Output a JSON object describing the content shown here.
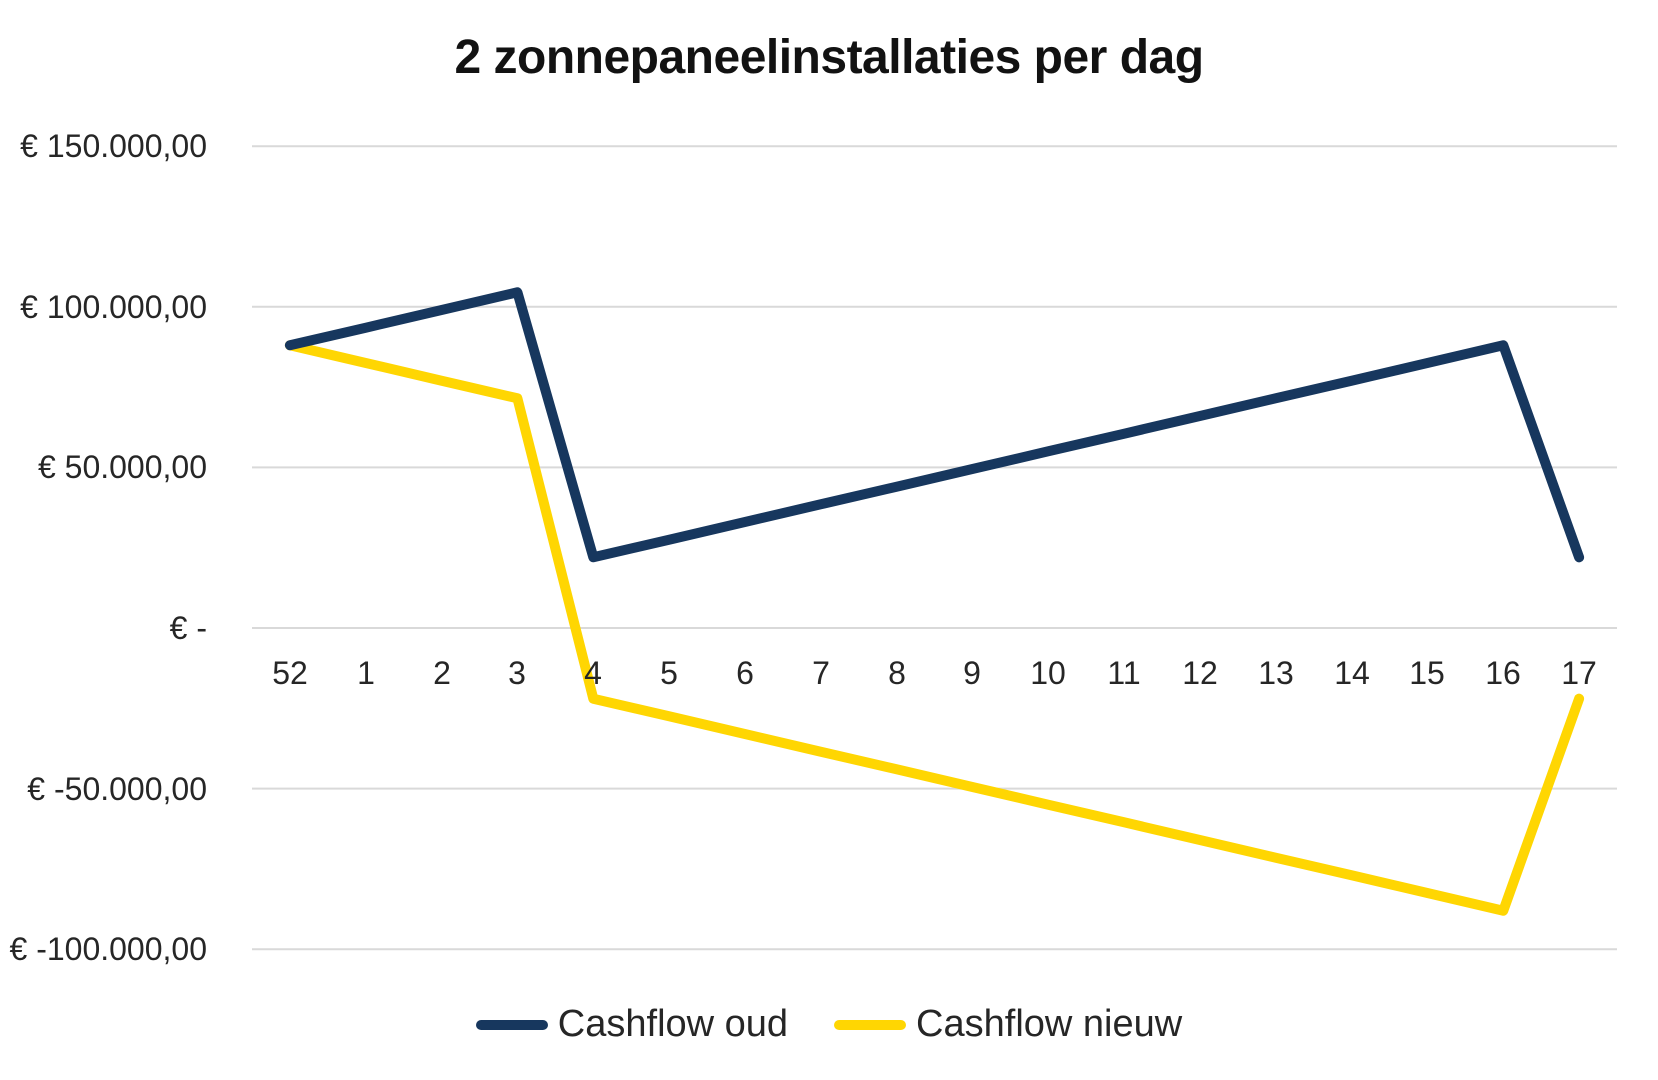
{
  "chart_data": {
    "type": "line",
    "title": "2 zonnepaneelinstallaties per dag",
    "xlabel": "",
    "ylabel": "",
    "categories": [
      "52",
      "1",
      "2",
      "3",
      "4",
      "5",
      "6",
      "7",
      "8",
      "9",
      "10",
      "11",
      "12",
      "13",
      "14",
      "15",
      "16",
      "17"
    ],
    "ylim": [
      -100000,
      150000
    ],
    "y_major_unit": 50000,
    "grid": true,
    "gridline_color": "#d9d9d9",
    "background": "#ffffff",
    "text_color": "#262626",
    "legend_position": "bottom",
    "y_ticks": [
      {
        "label": "€ 150.000,00",
        "value": 150000
      },
      {
        "label": "€ 100.000,00",
        "value": 100000
      },
      {
        "label": "€ 50.000,00",
        "value": 50000
      },
      {
        "label": "€ -",
        "value": 0
      },
      {
        "label": "€ -50.000,00",
        "value": -50000
      },
      {
        "label": "€ -100.000,00",
        "value": -100000
      }
    ],
    "series": [
      {
        "name": "Cashflow oud",
        "color": "#17375e",
        "values": [
          88000,
          93500,
          99000,
          104500,
          22000,
          27500,
          33000,
          38500,
          44000,
          49500,
          55000,
          60500,
          66000,
          71500,
          77000,
          82500,
          88000,
          22000
        ]
      },
      {
        "name": "Cashflow nieuw",
        "color": "#ffd602",
        "values": [
          88000,
          82500,
          77000,
          71500,
          -22000,
          -27500,
          -33000,
          -38500,
          -44000,
          -49500,
          -55000,
          -60500,
          -66000,
          -71500,
          -77000,
          -82500,
          -88000,
          -22000
        ]
      }
    ]
  }
}
